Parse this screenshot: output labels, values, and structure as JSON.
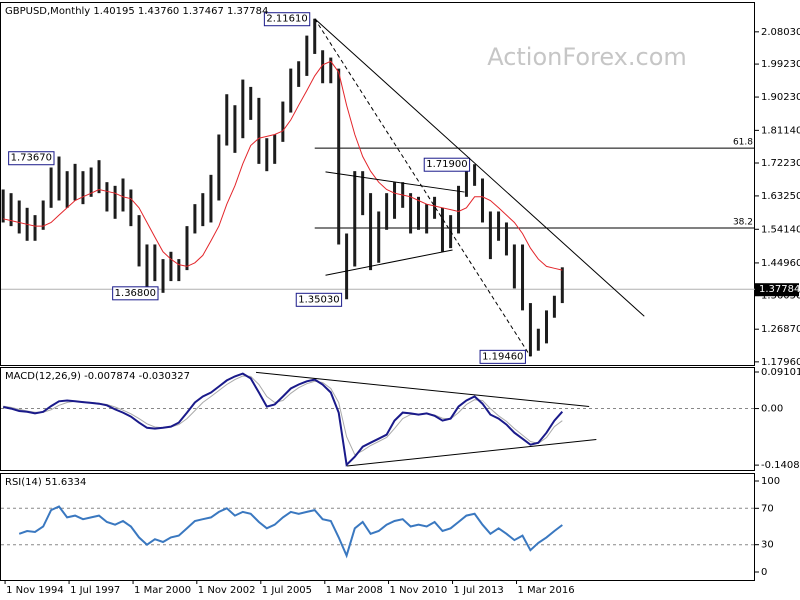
{
  "chart_data": [
    {
      "type": "range-bar",
      "title": "GBPUSD,Monthly  1.40195 1.43760 1.37467 1.37784",
      "watermark": "ActionForex.com",
      "xlim": [
        1994.66,
        2026.12
      ],
      "ylim": [
        1.171,
        2.159
      ],
      "yticks": [
        {
          "value": 2.0803,
          "label": "2.08030"
        },
        {
          "value": 1.9923,
          "label": "1.99230"
        },
        {
          "value": 1.9023,
          "label": "1.90230"
        },
        {
          "value": 1.8114,
          "label": "1.81140"
        },
        {
          "value": 1.7223,
          "label": "1.72230"
        },
        {
          "value": 1.6325,
          "label": "1.63250"
        },
        {
          "value": 1.5414,
          "label": "1.54140"
        },
        {
          "value": 1.4496,
          "label": "1.44960"
        },
        {
          "value": 1.3605,
          "label": "1.36050"
        },
        {
          "value": 1.2687,
          "label": "1.26870"
        },
        {
          "value": 1.1796,
          "label": "1.17960"
        }
      ],
      "x": [
        1994.75,
        1995.08,
        1995.42,
        1995.75,
        1996.08,
        1996.42,
        1996.75,
        1997.08,
        1997.42,
        1997.75,
        1998.08,
        1998.42,
        1998.75,
        1999.08,
        1999.42,
        1999.75,
        2000.08,
        2000.42,
        2000.75,
        2001.08,
        2001.42,
        2001.75,
        2002.08,
        2002.42,
        2002.75,
        2003.08,
        2003.42,
        2003.75,
        2004.08,
        2004.42,
        2004.75,
        2005.08,
        2005.42,
        2005.75,
        2006.08,
        2006.42,
        2006.75,
        2007.08,
        2007.42,
        2007.75,
        2008.08,
        2008.42,
        2008.75,
        2009.08,
        2009.42,
        2009.75,
        2010.08,
        2010.42,
        2010.75,
        2011.08,
        2011.42,
        2011.75,
        2012.08,
        2012.42,
        2012.75,
        2013.08,
        2013.42,
        2013.75,
        2014.08,
        2014.42,
        2014.75,
        2015.08,
        2015.42,
        2015.75,
        2016.08,
        2016.42,
        2016.75,
        2017.08,
        2017.42,
        2017.75,
        2018.08
      ],
      "high": [
        1.65,
        1.64,
        1.62,
        1.6,
        1.58,
        1.62,
        1.71,
        1.74,
        1.7,
        1.72,
        1.7,
        1.71,
        1.73,
        1.67,
        1.66,
        1.68,
        1.65,
        1.58,
        1.5,
        1.5,
        1.46,
        1.48,
        1.46,
        1.55,
        1.61,
        1.64,
        1.69,
        1.8,
        1.91,
        1.88,
        1.95,
        1.93,
        1.9,
        1.79,
        1.8,
        1.89,
        1.98,
        2.0,
        2.07,
        2.1161,
        2.03,
        2.01,
        1.98,
        1.53,
        1.7,
        1.7,
        1.64,
        1.59,
        1.64,
        1.67,
        1.67,
        1.64,
        1.63,
        1.61,
        1.63,
        1.6,
        1.58,
        1.66,
        1.7,
        1.719,
        1.68,
        1.59,
        1.59,
        1.56,
        1.5,
        1.5,
        1.34,
        1.27,
        1.32,
        1.36,
        1.4376
      ],
      "low": [
        1.56,
        1.55,
        1.53,
        1.51,
        1.51,
        1.54,
        1.6,
        1.62,
        1.6,
        1.62,
        1.61,
        1.63,
        1.64,
        1.59,
        1.57,
        1.59,
        1.55,
        1.44,
        1.37,
        1.4,
        1.368,
        1.4,
        1.4,
        1.43,
        1.53,
        1.55,
        1.56,
        1.62,
        1.77,
        1.75,
        1.79,
        1.84,
        1.72,
        1.7,
        1.72,
        1.78,
        1.86,
        1.93,
        1.96,
        2.02,
        1.94,
        1.94,
        1.5,
        1.3503,
        1.44,
        1.58,
        1.43,
        1.45,
        1.54,
        1.57,
        1.6,
        1.53,
        1.54,
        1.53,
        1.57,
        1.48,
        1.49,
        1.53,
        1.63,
        1.66,
        1.56,
        1.46,
        1.51,
        1.47,
        1.38,
        1.32,
        1.1946,
        1.21,
        1.23,
        1.3,
        1.34
      ],
      "bar_color": "#1c1c1c",
      "ma": {
        "color": "#e3262b",
        "x": [
          1994.75,
          1995.08,
          1995.42,
          1995.75,
          1996.08,
          1996.42,
          1996.75,
          1997.08,
          1997.42,
          1997.75,
          1998.08,
          1998.42,
          1998.75,
          1999.08,
          1999.42,
          1999.75,
          2000.08,
          2000.42,
          2000.75,
          2001.08,
          2001.42,
          2001.75,
          2002.08,
          2002.42,
          2002.75,
          2003.08,
          2003.42,
          2003.75,
          2004.08,
          2004.42,
          2004.75,
          2005.08,
          2005.42,
          2005.75,
          2006.08,
          2006.42,
          2006.75,
          2007.08,
          2007.42,
          2007.75,
          2008.08,
          2008.42,
          2008.75,
          2009.08,
          2009.42,
          2009.75,
          2010.08,
          2010.42,
          2010.75,
          2011.08,
          2011.42,
          2011.75,
          2012.08,
          2012.42,
          2012.75,
          2013.08,
          2013.42,
          2013.75,
          2014.08,
          2014.42,
          2014.75,
          2015.08,
          2015.42,
          2015.75,
          2016.08,
          2016.42,
          2016.75,
          2017.08,
          2017.42,
          2017.75,
          2018.08
        ],
        "values": [
          1.57,
          1.565,
          1.56,
          1.555,
          1.55,
          1.55,
          1.56,
          1.58,
          1.6,
          1.62,
          1.63,
          1.64,
          1.65,
          1.645,
          1.64,
          1.63,
          1.625,
          1.6,
          1.56,
          1.52,
          1.48,
          1.46,
          1.445,
          1.44,
          1.45,
          1.47,
          1.51,
          1.55,
          1.61,
          1.66,
          1.72,
          1.77,
          1.79,
          1.795,
          1.8,
          1.81,
          1.84,
          1.88,
          1.92,
          1.96,
          1.99,
          2.0,
          1.97,
          1.88,
          1.8,
          1.74,
          1.7,
          1.67,
          1.65,
          1.64,
          1.635,
          1.63,
          1.62,
          1.61,
          1.605,
          1.6,
          1.595,
          1.59,
          1.6,
          1.63,
          1.63,
          1.62,
          1.6,
          1.58,
          1.56,
          1.53,
          1.49,
          1.46,
          1.44,
          1.435,
          1.43
        ]
      },
      "last_price": 1.37784,
      "price_labels": [
        {
          "x": 2007.75,
          "value": 2.1161,
          "label": "2.11610"
        },
        {
          "x": 1997.08,
          "value": 1.7367,
          "label": "1.73670"
        },
        {
          "x": 2001.42,
          "value": 1.368,
          "label": "1.36800"
        },
        {
          "x": 2009.08,
          "value": 1.3503,
          "label": "1.35030"
        },
        {
          "x": 2014.42,
          "value": 1.719,
          "label": "1.71900"
        },
        {
          "x": 2016.75,
          "value": 1.1946,
          "label": "1.19460"
        }
      ],
      "levels": [
        {
          "x": 2007.75,
          "value": 1.763,
          "label": "61.8"
        },
        {
          "x": 2007.75,
          "value": 1.545,
          "label": "38.2"
        }
      ],
      "trendlines": [
        {
          "x": [
            2007.75,
            2021.5
          ],
          "y": [
            2.1161,
            1.304
          ],
          "dashed": false
        },
        {
          "x": [
            2007.75,
            2016.75
          ],
          "y": [
            2.1161,
            1.1946
          ],
          "dashed": true
        },
        {
          "x": [
            2008.2,
            2014.0
          ],
          "y": [
            1.698,
            1.643
          ],
          "dashed": false
        },
        {
          "x": [
            2008.2,
            2013.5
          ],
          "y": [
            1.416,
            1.485
          ],
          "dashed": false
        }
      ]
    },
    {
      "type": "line",
      "title": "MACD(12,26,9) -0.007874 -0.030327",
      "xlim": [
        1994.66,
        2026.12
      ],
      "ylim": [
        -0.153,
        0.101
      ],
      "yticks": [
        0.091015,
        {
          "value": 0,
          "label": "0.00"
        },
        -0.140843
      ],
      "levels": [
        0
      ],
      "x": [
        1994.75,
        1995.08,
        1995.42,
        1995.75,
        1996.08,
        1996.42,
        1996.75,
        1997.08,
        1997.42,
        1997.75,
        1998.08,
        1998.42,
        1998.75,
        1999.08,
        1999.42,
        1999.75,
        2000.08,
        2000.42,
        2000.75,
        2001.08,
        2001.42,
        2001.75,
        2002.08,
        2002.42,
        2002.75,
        2003.08,
        2003.42,
        2003.75,
        2004.08,
        2004.42,
        2004.75,
        2005.08,
        2005.42,
        2005.75,
        2006.08,
        2006.42,
        2006.75,
        2007.08,
        2007.42,
        2007.75,
        2008.08,
        2008.42,
        2008.75,
        2009.08,
        2009.42,
        2009.75,
        2010.08,
        2010.42,
        2010.75,
        2011.08,
        2011.42,
        2011.75,
        2012.08,
        2012.42,
        2012.75,
        2013.08,
        2013.42,
        2013.75,
        2014.08,
        2014.42,
        2014.75,
        2015.08,
        2015.42,
        2015.75,
        2016.08,
        2016.42,
        2016.75,
        2017.08,
        2017.42,
        2017.75,
        2018.08
      ],
      "series": [
        {
          "color": "#aaaaaa",
          "values": [
            0.006,
            0.003,
            -0.002,
            -0.006,
            -0.009,
            -0.009,
            -0.003,
            0.008,
            0.015,
            0.018,
            0.017,
            0.015,
            0.013,
            0.01,
            0.004,
            -0.004,
            -0.013,
            -0.025,
            -0.038,
            -0.046,
            -0.048,
            -0.046,
            -0.04,
            -0.025,
            -0.005,
            0.015,
            0.03,
            0.045,
            0.06,
            0.072,
            0.081,
            0.08,
            0.06,
            0.03,
            0.015,
            0.02,
            0.038,
            0.052,
            0.062,
            0.068,
            0.065,
            0.05,
            0.015,
            -0.07,
            -0.115,
            -0.105,
            -0.092,
            -0.082,
            -0.072,
            -0.05,
            -0.025,
            -0.015,
            -0.014,
            -0.013,
            -0.016,
            -0.024,
            -0.026,
            -0.01,
            0.01,
            0.022,
            0.02,
            0.0,
            -0.018,
            -0.032,
            -0.05,
            -0.066,
            -0.082,
            -0.087,
            -0.072,
            -0.045,
            -0.030327
          ]
        },
        {
          "color": "#1a1a8a",
          "values": [
            0.004,
            0.0,
            -0.006,
            -0.008,
            -0.012,
            -0.008,
            0.006,
            0.018,
            0.02,
            0.018,
            0.016,
            0.014,
            0.012,
            0.008,
            -0.002,
            -0.01,
            -0.02,
            -0.035,
            -0.048,
            -0.05,
            -0.048,
            -0.045,
            -0.035,
            -0.01,
            0.015,
            0.03,
            0.04,
            0.055,
            0.07,
            0.08,
            0.087,
            0.075,
            0.04,
            0.005,
            0.01,
            0.03,
            0.05,
            0.06,
            0.068,
            0.072,
            0.06,
            0.04,
            -0.01,
            -0.14,
            -0.12,
            -0.095,
            -0.085,
            -0.075,
            -0.065,
            -0.03,
            -0.01,
            -0.012,
            -0.015,
            -0.012,
            -0.018,
            -0.03,
            -0.025,
            0.005,
            0.02,
            0.03,
            0.012,
            -0.015,
            -0.025,
            -0.04,
            -0.06,
            -0.075,
            -0.09,
            -0.085,
            -0.06,
            -0.03,
            -0.007874
          ]
        }
      ],
      "trendlines": [
        {
          "x": [
            2005.3,
            2019.2
          ],
          "y": [
            0.09,
            0.005
          ],
          "dashed": false
        },
        {
          "x": [
            2009.1,
            2019.5
          ],
          "y": [
            -0.143,
            -0.077
          ],
          "dashed": false
        }
      ]
    },
    {
      "type": "line",
      "title": "RSI(14) 51.6334",
      "xlim": [
        1994.66,
        2026.12
      ],
      "ylim": [
        -8.8,
        107.7
      ],
      "yticks": [
        100,
        70,
        30,
        0
      ],
      "levels": [
        70,
        30
      ],
      "xticks": [
        {
          "value": 1994.83,
          "label": "1 Nov 1994"
        },
        {
          "value": 1997.5,
          "label": "1 Jul 1997"
        },
        {
          "value": 2000.17,
          "label": "1 Mar 2000"
        },
        {
          "value": 2002.83,
          "label": "1 Nov 2002"
        },
        {
          "value": 2005.5,
          "label": "1 Jul 2005"
        },
        {
          "value": 2008.17,
          "label": "1 Mar 2008"
        },
        {
          "value": 2010.83,
          "label": "1 Nov 2010"
        },
        {
          "value": 2013.5,
          "label": "1 Jul 2013"
        },
        {
          "value": 2016.17,
          "label": "1 Mar 2016"
        }
      ],
      "x": [
        1994.75,
        1995.08,
        1995.42,
        1995.75,
        1996.08,
        1996.42,
        1996.75,
        1997.08,
        1997.42,
        1997.75,
        1998.08,
        1998.42,
        1998.75,
        1999.08,
        1999.42,
        1999.75,
        2000.08,
        2000.42,
        2000.75,
        2001.08,
        2001.42,
        2001.75,
        2002.08,
        2002.42,
        2002.75,
        2003.08,
        2003.42,
        2003.75,
        2004.08,
        2004.42,
        2004.75,
        2005.08,
        2005.42,
        2005.75,
        2006.08,
        2006.42,
        2006.75,
        2007.08,
        2007.42,
        2007.75,
        2008.08,
        2008.42,
        2008.75,
        2009.08,
        2009.42,
        2009.75,
        2010.08,
        2010.42,
        2010.75,
        2011.08,
        2011.42,
        2011.75,
        2012.08,
        2012.42,
        2012.75,
        2013.08,
        2013.42,
        2013.75,
        2014.08,
        2014.42,
        2014.75,
        2015.08,
        2015.42,
        2015.75,
        2016.08,
        2016.42,
        2016.75,
        2017.08,
        2017.42,
        2017.75,
        2018.08
      ],
      "series": [
        {
          "color": "#3a78c0",
          "values": [
            null,
            null,
            42,
            45,
            44,
            50,
            68,
            72,
            60,
            62,
            58,
            60,
            62,
            55,
            52,
            56,
            50,
            38,
            30,
            36,
            33,
            38,
            40,
            48,
            56,
            58,
            60,
            66,
            70,
            62,
            66,
            64,
            55,
            48,
            52,
            60,
            66,
            64,
            66,
            68,
            58,
            56,
            38,
            18,
            48,
            55,
            42,
            45,
            52,
            56,
            58,
            50,
            52,
            50,
            55,
            45,
            48,
            55,
            62,
            64,
            52,
            42,
            48,
            42,
            35,
            40,
            24,
            32,
            38,
            45,
            51.6334
          ]
        }
      ]
    }
  ]
}
